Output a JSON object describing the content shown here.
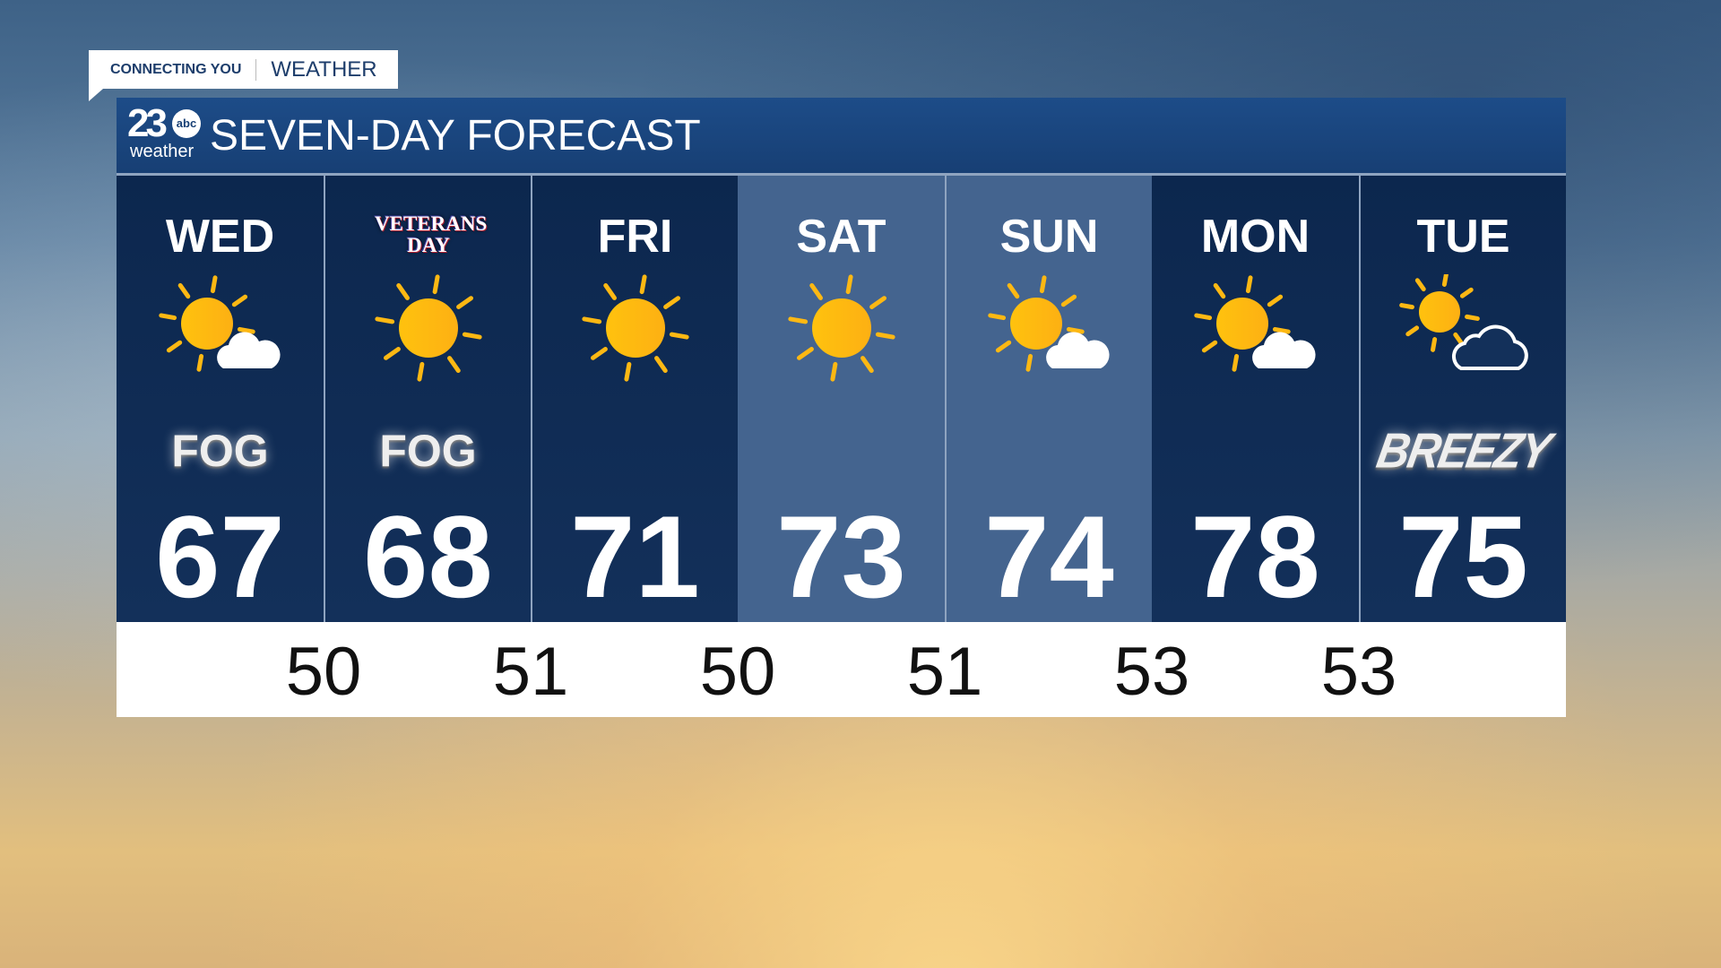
{
  "tag": {
    "left": "CONNECTING YOU",
    "right": "WEATHER"
  },
  "header": {
    "logo": {
      "number": "23",
      "network": "abc",
      "sub": "weather"
    },
    "title": "SEVEN-DAY FORECAST"
  },
  "days": [
    {
      "label": "WED",
      "icon": "mostly-sunny",
      "note": "FOG",
      "high": "67",
      "shade": "dark"
    },
    {
      "label": "VETERANS DAY",
      "holiday": true,
      "icon": "sunny",
      "note": "FOG",
      "high": "68",
      "shade": "dark"
    },
    {
      "label": "FRI",
      "icon": "sunny",
      "note": "",
      "high": "71",
      "shade": "dark"
    },
    {
      "label": "SAT",
      "icon": "sunny",
      "note": "",
      "high": "73",
      "shade": "light"
    },
    {
      "label": "SUN",
      "icon": "mostly-sunny",
      "note": "",
      "high": "74",
      "shade": "light"
    },
    {
      "label": "MON",
      "icon": "mostly-sunny",
      "note": "",
      "high": "78",
      "shade": "dark"
    },
    {
      "label": "TUE",
      "icon": "partly-cloudy",
      "note": "BREEZY",
      "high": "75",
      "shade": "dark"
    }
  ],
  "lows": [
    "50",
    "51",
    "50",
    "51",
    "53",
    "53"
  ],
  "colors": {
    "sun": "#fdb813",
    "panel_dark": "#0f2a50",
    "panel_light": "#44648f",
    "header": "#1b4a85"
  }
}
